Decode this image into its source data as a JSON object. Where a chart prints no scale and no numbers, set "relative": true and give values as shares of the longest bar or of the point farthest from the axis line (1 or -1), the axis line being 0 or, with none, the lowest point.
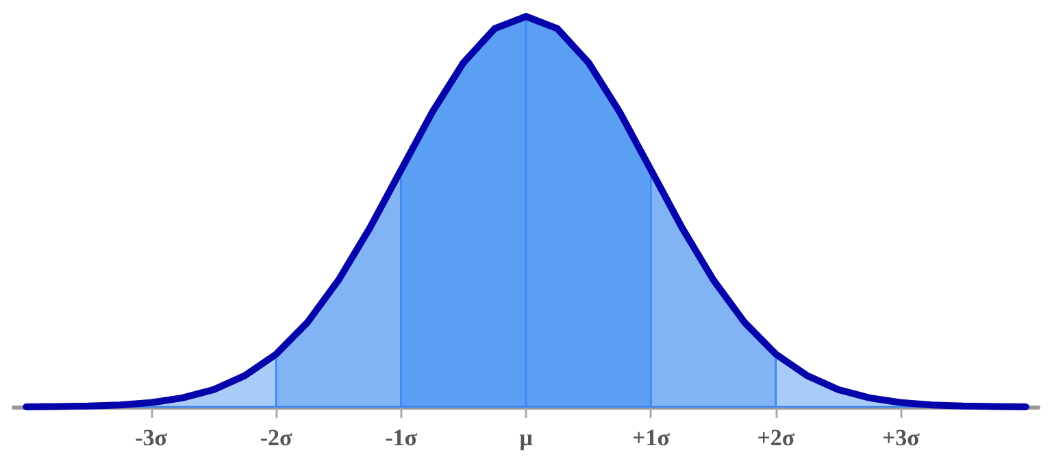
{
  "chart_data": {
    "type": "area",
    "relative": true,
    "marker": "none",
    "line_style": "solid",
    "tick_labels": "x",
    "xlim": [
      -4.1,
      4.1
    ],
    "xticks": [
      {
        "value": -3,
        "label": "-3σ"
      },
      {
        "value": -2,
        "label": "-2σ"
      },
      {
        "value": -1,
        "label": "-1σ"
      },
      {
        "value": 0,
        "label": "μ"
      },
      {
        "value": 1,
        "label": "+1σ"
      },
      {
        "value": 2,
        "label": "+2σ"
      },
      {
        "value": 3,
        "label": "+3σ"
      }
    ],
    "series": [
      {
        "color": "#a8cbf8",
        "x": [
          -4,
          -3.75,
          -3.5,
          -3.25,
          -3,
          -2.75,
          -2.5,
          -2.25,
          -2
        ],
        "values": [
          0.0,
          0.001,
          0.002,
          0.005,
          0.011,
          0.023,
          0.044,
          0.08,
          0.135
        ]
      },
      {
        "color": "#82b3f5",
        "x": [
          -2,
          -1.75,
          -1.5,
          -1.25,
          -1
        ],
        "values": [
          0.135,
          0.216,
          0.325,
          0.458,
          0.607
        ]
      },
      {
        "color": "#5b9ff4",
        "x": [
          -1,
          -0.75,
          -0.5,
          -0.25,
          0
        ],
        "values": [
          0.607,
          0.755,
          0.882,
          0.969,
          1
        ]
      },
      {
        "color": "#5b9ff4",
        "x": [
          0,
          0.25,
          0.5,
          0.75,
          1
        ],
        "values": [
          1,
          0.969,
          0.882,
          0.755,
          0.607
        ]
      },
      {
        "color": "#82b3f5",
        "x": [
          1,
          1.25,
          1.5,
          1.75,
          2
        ],
        "values": [
          0.607,
          0.458,
          0.325,
          0.216,
          0.135
        ]
      },
      {
        "color": "#a8cbf8",
        "x": [
          2,
          2.25,
          2.5,
          2.75,
          3,
          3.25,
          3.5,
          3.75,
          4
        ],
        "values": [
          0.135,
          0.08,
          0.044,
          0.023,
          0.011,
          0.005,
          0.002,
          0.001,
          0.0
        ]
      },
      {
        "type": "line",
        "color": "#0404aa",
        "x": [
          -4,
          -3.75,
          -3.5,
          -3.25,
          -3,
          -2.75,
          -2.5,
          -2.25,
          -2,
          -1.75,
          -1.5,
          -1.25,
          -1,
          -0.75,
          -0.5,
          -0.25,
          0,
          0.25,
          0.5,
          0.75,
          1,
          1.25,
          1.5,
          1.75,
          2,
          2.25,
          2.5,
          2.75,
          3,
          3.25,
          3.5,
          3.75,
          4
        ],
        "values": [
          0.0,
          0.001,
          0.002,
          0.005,
          0.011,
          0.023,
          0.044,
          0.08,
          0.135,
          0.216,
          0.325,
          0.458,
          0.607,
          0.755,
          0.882,
          0.969,
          1,
          0.969,
          0.882,
          0.755,
          0.607,
          0.458,
          0.325,
          0.216,
          0.135,
          0.08,
          0.044,
          0.023,
          0.011,
          0.005,
          0.002,
          0.001,
          0.0
        ]
      }
    ]
  }
}
